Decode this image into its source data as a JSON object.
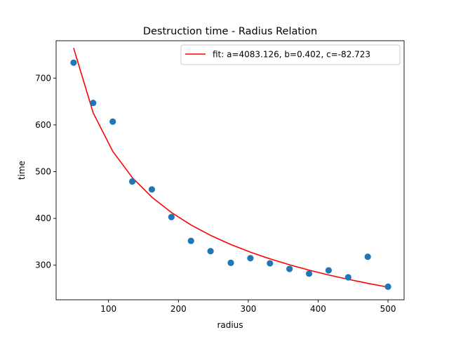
{
  "chart_data": {
    "type": "scatter",
    "title": "Destruction time - Radius Relation",
    "xlabel": "radius",
    "ylabel": "time",
    "xlim": [
      25,
      523
    ],
    "ylim": [
      226,
      780
    ],
    "xticks": [
      100,
      200,
      300,
      400,
      500
    ],
    "yticks": [
      300,
      400,
      500,
      600,
      700
    ],
    "grid": false,
    "legend_position": "top-right",
    "legend": {
      "label": "fit: a=4083.126, b=0.402, c=-82.723"
    },
    "colors": {
      "points": "#1f77b4",
      "fit": "#ff0000",
      "axes": "#000000",
      "legend_border": "#cccccc"
    },
    "points": {
      "x": [
        50,
        78,
        106,
        134,
        162,
        190,
        218,
        246,
        275,
        303,
        331,
        359,
        387,
        415,
        443,
        471,
        500
      ],
      "y": [
        733,
        647,
        607,
        479,
        462,
        403,
        352,
        330,
        305,
        315,
        304,
        292,
        282,
        289,
        274,
        318,
        254
      ]
    },
    "fit": {
      "a": 4083.126,
      "b": 0.402,
      "c": -82.723
    }
  }
}
